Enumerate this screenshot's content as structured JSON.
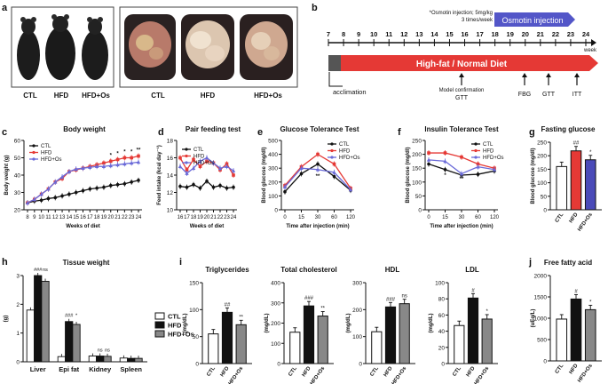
{
  "panels": {
    "a": {
      "letter": "a",
      "photo_labels": [
        "CTL",
        "HFD",
        "HFD+Os"
      ],
      "organ_labels": [
        "CTL",
        "HFD",
        "HFD+Os"
      ]
    },
    "b": {
      "letter": "b",
      "note_line1": "*Osmotin injection; 5mg/kg",
      "note_line2": "3 times/week",
      "osmotin_label": "Osmotin injection",
      "diet_label": "High-fat / Normal Diet",
      "week_label": "week",
      "weeks": [
        "7",
        "8",
        "9",
        "10",
        "11",
        "12",
        "13",
        "14",
        "15",
        "16",
        "17",
        "18",
        "19",
        "20",
        "21",
        "22",
        "23",
        "24"
      ],
      "acclimation_label": "acclimation",
      "model_confirmation_label": "Model confirmation",
      "events": [
        "GTT",
        "FBG",
        "GTT",
        "ITT"
      ]
    }
  },
  "colors": {
    "ctl": "#111111",
    "hfd": "#e53935",
    "hfd_os": "#6a6ad8",
    "red_bar": "#e53935",
    "blue_bar": "#4a4ab8",
    "osmotin": "#5356c8",
    "diet": "#e53935"
  },
  "chart_data": [
    {
      "id": "c",
      "letter": "c",
      "type": "line",
      "title": "Body weight",
      "xlabel": "Weeks of diet",
      "ylabel": "Body weight (g)",
      "x": [
        8,
        9,
        10,
        11,
        12,
        13,
        14,
        15,
        16,
        17,
        18,
        19,
        20,
        21,
        22,
        23,
        24
      ],
      "x_ticks": [
        "8",
        "9",
        "10",
        "11",
        "12",
        "13",
        "14",
        "15",
        "16",
        "17",
        "18",
        "19",
        "20",
        "21",
        "22",
        "23",
        "24"
      ],
      "ylim": [
        20,
        60
      ],
      "y_ticks": [
        "20",
        "30",
        "40",
        "50",
        "60"
      ],
      "series": [
        {
          "name": "CTL",
          "values": [
            24,
            25,
            25.5,
            26.5,
            27,
            28,
            29,
            30,
            31,
            32,
            32.5,
            33,
            34,
            34.5,
            35,
            36,
            37
          ]
        },
        {
          "name": "HFD",
          "values": [
            24,
            26,
            29,
            32,
            36,
            38,
            42,
            43,
            44,
            45,
            46,
            47,
            48,
            49,
            50,
            50,
            51
          ]
        },
        {
          "name": "HFD+Os",
          "values": [
            24,
            26,
            29,
            32,
            36,
            39,
            42,
            43.5,
            44,
            44.5,
            45,
            45,
            45.5,
            46,
            46.5,
            47,
            47.5
          ]
        }
      ],
      "legend": [
        "CTL",
        "HFD",
        "HFD+Os"
      ],
      "stars": [
        "*",
        "*",
        "*",
        "*",
        "**"
      ]
    },
    {
      "id": "d",
      "letter": "d",
      "type": "line",
      "title": "Pair feeding test",
      "xlabel": "Weeks of diet",
      "ylabel": "Feed intake (kcal day⁻¹)",
      "x": [
        16,
        17,
        18,
        19,
        20,
        21,
        22,
        23,
        24
      ],
      "x_ticks": [
        "16",
        "17",
        "18",
        "19",
        "20",
        "21",
        "22",
        "23",
        "24"
      ],
      "ylim": [
        10,
        18
      ],
      "y_ticks": [
        "10",
        "12",
        "14",
        "16",
        "18"
      ],
      "series": [
        {
          "name": "CTL",
          "values": [
            12.7,
            12.6,
            12.9,
            12.5,
            13.3,
            12.6,
            12.8,
            12.5,
            12.6
          ]
        },
        {
          "name": "HFD",
          "values": [
            16.0,
            14.6,
            15.8,
            15.0,
            15.6,
            15.4,
            14.6,
            15.3,
            14.0
          ]
        },
        {
          "name": "HFD+Os",
          "values": [
            15.0,
            14.2,
            14.8,
            15.6,
            16.0,
            15.4,
            14.8,
            15.0,
            14.5
          ]
        }
      ],
      "legend": [
        "CTL",
        "HFD",
        "HFD+Os"
      ]
    },
    {
      "id": "e",
      "letter": "e",
      "type": "line",
      "title": "Glucose Tolerance Test",
      "xlabel": "Time after injection (min)",
      "ylabel": "Blood glucose (mg/dl)",
      "x": [
        "0",
        "15",
        "30",
        "60",
        "120"
      ],
      "x_ticks": [
        "0",
        "15",
        "30",
        "60",
        "120"
      ],
      "ylim": [
        0,
        500
      ],
      "y_ticks": [
        "0",
        "100",
        "200",
        "300",
        "400",
        "500"
      ],
      "series": [
        {
          "name": "CTL",
          "values": [
            130,
            260,
            330,
            240,
            140
          ]
        },
        {
          "name": "HFD",
          "values": [
            175,
            310,
            400,
            330,
            155
          ]
        },
        {
          "name": "HFD+Os",
          "values": [
            165,
            300,
            290,
            270,
            145
          ]
        }
      ],
      "legend": [
        "CTL",
        "HFD",
        "HFD+Os"
      ],
      "stars": [
        "**"
      ]
    },
    {
      "id": "f",
      "letter": "f",
      "type": "line",
      "title": "Insulin Tolerance Test",
      "xlabel": "Time after injection (min)",
      "ylabel": "Blood glucose (mg/dl)",
      "x": [
        "0",
        "15",
        "30",
        "60",
        "120"
      ],
      "x_ticks": [
        "0",
        "15",
        "30",
        "60",
        "120"
      ],
      "ylim": [
        0,
        250
      ],
      "y_ticks": [
        "0",
        "50",
        "100",
        "150",
        "200",
        "250"
      ],
      "series": [
        {
          "name": "CTL",
          "values": [
            165,
            145,
            125,
            128,
            140
          ]
        },
        {
          "name": "HFD",
          "values": [
            205,
            205,
            190,
            165,
            150
          ]
        },
        {
          "name": "HFD+Os",
          "values": [
            180,
            175,
            130,
            155,
            145
          ]
        }
      ],
      "legend": [
        "CTL",
        "HFD",
        "HFD+Os"
      ],
      "stars": [
        "*",
        "**"
      ]
    },
    {
      "id": "g",
      "letter": "g",
      "type": "bar",
      "title": "Fasting glucose",
      "ylabel": "Blood glucose (mg/dl)",
      "categories": [
        "CTL",
        "HFD",
        "HFD+Os"
      ],
      "values": [
        160,
        218,
        185
      ],
      "ylim": [
        0,
        250
      ],
      "y_ticks": [
        "0",
        "50",
        "100",
        "150",
        "200",
        "250"
      ],
      "sig": [
        "",
        "##",
        "*"
      ]
    },
    {
      "id": "h",
      "letter": "h",
      "type": "bar",
      "title": "Tissue weight",
      "ylabel": "(g)",
      "categories": [
        "Liver",
        "Epi fat",
        "Kidney",
        "Spleen"
      ],
      "series": [
        {
          "name": "CTL",
          "values": [
            1.8,
            0.18,
            0.2,
            0.13
          ]
        },
        {
          "name": "HFD",
          "values": [
            3.0,
            1.4,
            0.2,
            0.12
          ]
        },
        {
          "name": "HFD+Os",
          "values": [
            2.8,
            1.3,
            0.19,
            0.12
          ]
        }
      ],
      "ylim": [
        0,
        3
      ],
      "y_ticks": [
        "0",
        "1",
        "2",
        "3"
      ],
      "sig_labels": [
        "###",
        "ns",
        "###",
        "*",
        "ns",
        "ns"
      ],
      "legend": [
        "CTL",
        "HFD",
        "HFD+Os"
      ]
    },
    {
      "id": "i1",
      "letter": "i",
      "type": "bar",
      "title": "Triglycerides",
      "ylabel": "(mg/dL)",
      "categories": [
        "CTL",
        "HFD",
        "HFD+Os"
      ],
      "values": [
        55,
        95,
        72
      ],
      "ylim": [
        0,
        150
      ],
      "y_ticks": [
        "0",
        "50",
        "100",
        "150"
      ],
      "sig": [
        "",
        "##",
        "**"
      ]
    },
    {
      "id": "i2",
      "type": "bar",
      "title": "Total cholesterol",
      "ylabel": "(mg/dL)",
      "categories": [
        "CTL",
        "HFD",
        "HFD+Os"
      ],
      "values": [
        155,
        285,
        235
      ],
      "ylim": [
        0,
        400
      ],
      "y_ticks": [
        "0",
        "100",
        "200",
        "300",
        "400"
      ],
      "sig": [
        "",
        "###",
        "**"
      ]
    },
    {
      "id": "i3",
      "type": "bar",
      "title": "HDL",
      "ylabel": "(mg/dL)",
      "categories": [
        "CTL",
        "HFD",
        "HFD+Os"
      ],
      "values": [
        118,
        210,
        222
      ],
      "ylim": [
        0,
        300
      ],
      "y_ticks": [
        "0",
        "100",
        "200",
        "300"
      ],
      "sig": [
        "",
        "###",
        "ns"
      ]
    },
    {
      "id": "i4",
      "type": "bar",
      "title": "LDL",
      "ylabel": "(mg/dL)",
      "categories": [
        "CTL",
        "HFD",
        "HFD+Os"
      ],
      "values": [
        47,
        81,
        55
      ],
      "ylim": [
        0,
        100
      ],
      "y_ticks": [
        "0",
        "20",
        "40",
        "60",
        "80",
        "100"
      ],
      "sig": [
        "",
        "#",
        "*"
      ]
    },
    {
      "id": "j",
      "letter": "j",
      "type": "bar",
      "title": "Free fatty acid",
      "ylabel": "(uEq/L)",
      "categories": [
        "CTL",
        "HFD",
        "HFD+Os"
      ],
      "values": [
        980,
        1450,
        1200
      ],
      "ylim": [
        0,
        2000
      ],
      "y_ticks": [
        "0",
        "500",
        "1000",
        "1500",
        "2000"
      ],
      "sig": [
        "",
        "#",
        "*"
      ]
    }
  ]
}
